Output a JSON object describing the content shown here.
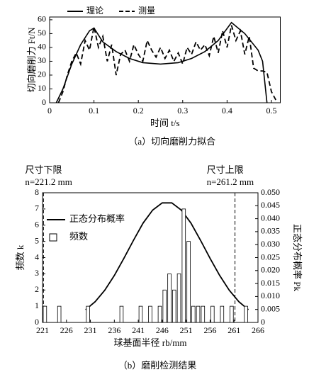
{
  "chart_data": [
    {
      "type": "line",
      "xlabel": "时间 t/s",
      "ylabel": "切向磨削力 Ft/N",
      "caption": "（a）切向磨削力拟合",
      "xlim": [
        0,
        0.52
      ],
      "xticks": [
        0,
        0.1,
        0.2,
        0.3,
        0.4,
        0.5
      ],
      "ylim": [
        0,
        62
      ],
      "yticks": [
        0,
        10,
        20,
        30,
        40,
        50,
        60
      ],
      "series": [
        {
          "name": "理论",
          "color": "#000000",
          "style": "solid",
          "x": [
            0.015,
            0.03,
            0.05,
            0.07,
            0.09,
            0.1,
            0.12,
            0.15,
            0.18,
            0.21,
            0.25,
            0.29,
            0.32,
            0.35,
            0.38,
            0.41,
            0.44,
            0.47,
            0.48,
            0.49
          ],
          "values": [
            0,
            10,
            28,
            42,
            52,
            54,
            44,
            37,
            32,
            29,
            28,
            29,
            32,
            37,
            45,
            58,
            50,
            38,
            30,
            0
          ]
        },
        {
          "name": "测量",
          "color": "#000000",
          "style": "dashed",
          "x": [
            0.02,
            0.03,
            0.04,
            0.05,
            0.06,
            0.07,
            0.08,
            0.09,
            0.1,
            0.11,
            0.12,
            0.13,
            0.14,
            0.15,
            0.16,
            0.17,
            0.18,
            0.19,
            0.2,
            0.21,
            0.22,
            0.23,
            0.24,
            0.25,
            0.26,
            0.27,
            0.28,
            0.29,
            0.3,
            0.31,
            0.32,
            0.33,
            0.34,
            0.35,
            0.36,
            0.37,
            0.38,
            0.39,
            0.4,
            0.41,
            0.42,
            0.43,
            0.44,
            0.45,
            0.46,
            0.47,
            0.48,
            0.49,
            0.5,
            0.51
          ],
          "values": [
            0,
            8,
            20,
            30,
            36,
            28,
            45,
            38,
            55,
            40,
            48,
            30,
            42,
            20,
            35,
            38,
            30,
            42,
            35,
            30,
            45,
            38,
            33,
            40,
            32,
            38,
            30,
            36,
            28,
            40,
            35,
            44,
            38,
            42,
            34,
            48,
            36,
            52,
            40,
            56,
            45,
            52,
            35,
            48,
            25,
            23,
            23,
            22,
            8,
            2
          ]
        }
      ]
    },
    {
      "type": "histogram",
      "xlabel": "球基面半径 rb/mm",
      "ylabel": "频数 k",
      "y2label": "正态分布概率 Pk",
      "caption": "（b）磨削检测结果",
      "xlim": [
        221,
        266
      ],
      "xticks": [
        221,
        226,
        231,
        236,
        241,
        246,
        251,
        256,
        261,
        266
      ],
      "ylim": [
        0,
        8
      ],
      "yticks": [
        0,
        1,
        2,
        3,
        4,
        5,
        6,
        7,
        8
      ],
      "y2lim": [
        0,
        0.05
      ],
      "y2ticks": [
        0,
        0.005,
        {
          "value": 0.01,
          "label": "0.010"
        },
        0.015,
        {
          "value": 0.02,
          "label": "0.020"
        },
        0.025,
        {
          "value": 0.03,
          "label": "0.030"
        },
        0.035,
        {
          "value": 0.04,
          "label": "0.040"
        },
        0.045,
        {
          "value": 0.05,
          "label": "0.050"
        }
      ],
      "limits": [
        {
          "label": "尺寸下限",
          "text": "n=221.2 mm",
          "value": 221.2
        },
        {
          "label": "尺寸上限",
          "text": "n=261.2 mm",
          "value": 261.2
        }
      ],
      "series": [
        {
          "name": "正态分布概率",
          "type": "line",
          "axis": "y2",
          "color": "#000000",
          "x": [
            230,
            232,
            234,
            236,
            238,
            240,
            242,
            244,
            246,
            248,
            250,
            252,
            254,
            256,
            258,
            260,
            262,
            264
          ],
          "values": [
            0.0049,
            0.008,
            0.0124,
            0.0181,
            0.0247,
            0.0317,
            0.0383,
            0.0433,
            0.0461,
            0.0461,
            0.0433,
            0.0383,
            0.0317,
            0.0247,
            0.0181,
            0.0124,
            0.008,
            0.0049
          ]
        },
        {
          "name": "频数",
          "type": "histogram",
          "color": "#ffffff",
          "bins": [
            221,
            222,
            223,
            224,
            225,
            226,
            227,
            228,
            229,
            230,
            231,
            232,
            233,
            234,
            235,
            236,
            237,
            238,
            239,
            240,
            241,
            242,
            243,
            244,
            245,
            246,
            247,
            248,
            249,
            250,
            251,
            252,
            253,
            254,
            255,
            256,
            257,
            258,
            259,
            260,
            261,
            262,
            263,
            264
          ],
          "values": [
            1,
            0,
            0,
            1,
            0,
            0,
            0,
            0,
            0,
            1,
            0,
            0,
            0,
            0,
            0,
            0,
            1,
            0,
            0,
            0,
            1,
            0,
            1,
            0,
            1,
            2,
            3,
            2,
            3,
            7,
            5,
            1,
            1,
            1,
            0,
            1,
            0,
            1,
            0,
            1,
            0,
            0,
            1
          ]
        }
      ]
    }
  ]
}
